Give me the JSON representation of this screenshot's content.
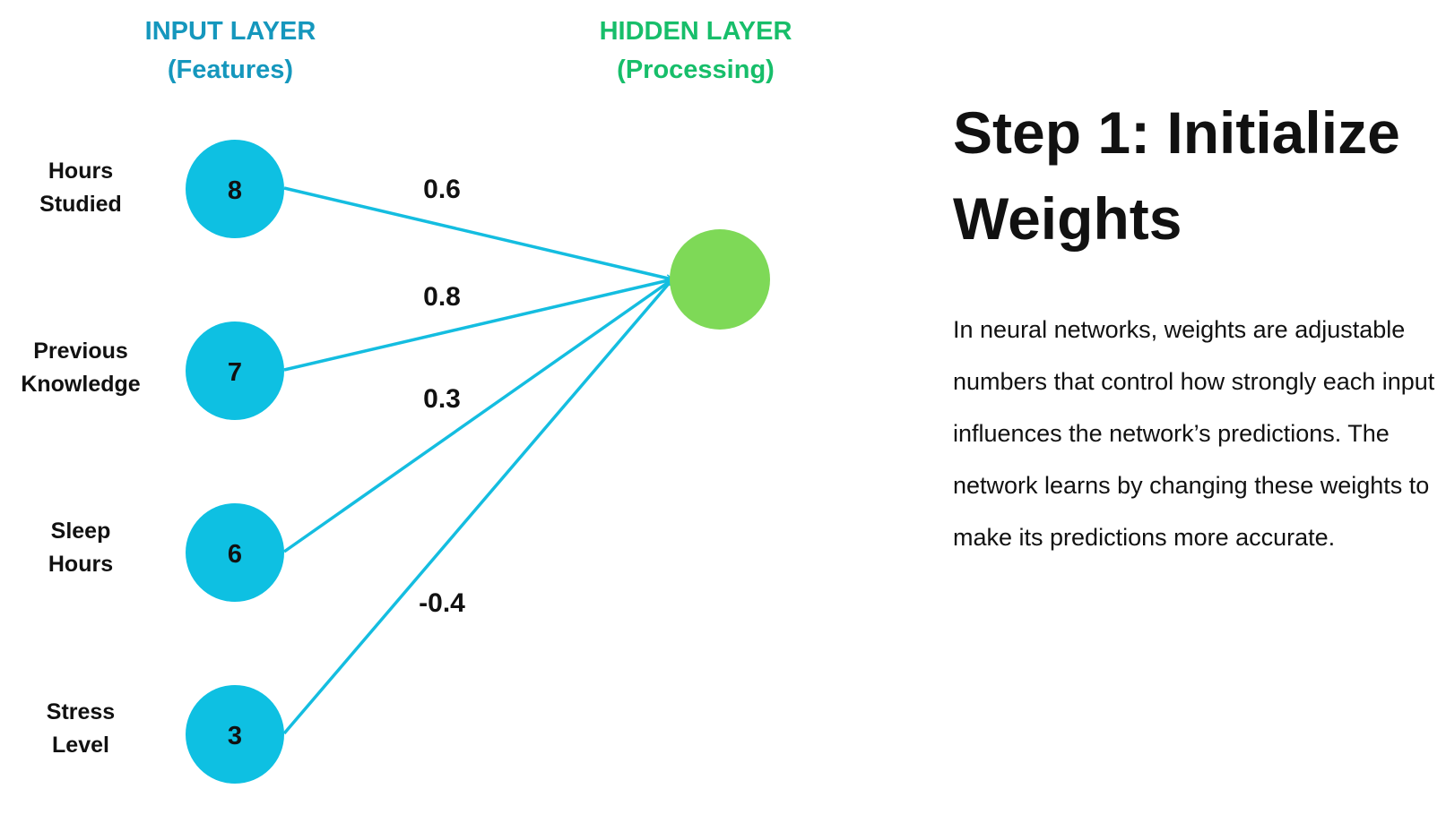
{
  "input_layer": {
    "title_line1": "INPUT LAYER",
    "title_line2": "(Features)",
    "color": "#1597bd"
  },
  "hidden_layer": {
    "title_line1": "HIDDEN LAYER",
    "title_line2": "(Processing)",
    "color": "#17be6a",
    "node_color": "#7ed957"
  },
  "node_color": "#0ec0e2",
  "edge_color": "#14bde0",
  "inputs": [
    {
      "label_line1": "Hours",
      "label_line2": "Studied",
      "value": "8",
      "weight": "0.6"
    },
    {
      "label_line1": "Previous",
      "label_line2": "Knowledge",
      "value": "7",
      "weight": "0.8"
    },
    {
      "label_line1": "Sleep",
      "label_line2": "Hours",
      "value": "6",
      "weight": "0.3"
    },
    {
      "label_line1": "Stress",
      "label_line2": "Level",
      "value": "3",
      "weight": "-0.4"
    }
  ],
  "step": {
    "title": "Step 1: Initialize Weights",
    "body": "In neural networks, weights are adjustable numbers that control how strongly each input influences the network’s predictions. The network learns by changing these weights to make its predictions more accurate."
  }
}
